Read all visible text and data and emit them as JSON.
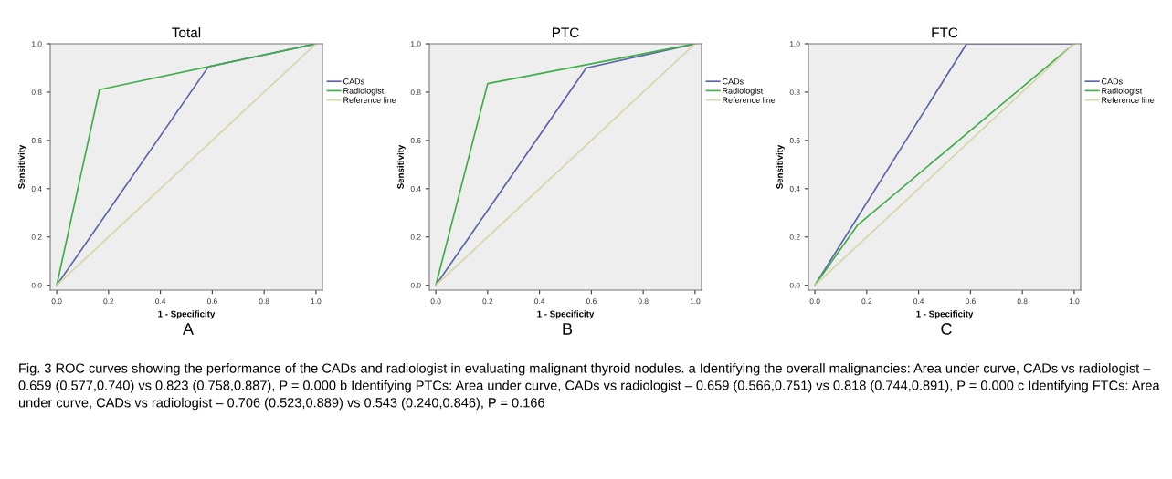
{
  "chart_data": [
    {
      "type": "line",
      "title": "Total",
      "xlabel": "1 - Specificity",
      "ylabel": "Sensitivity",
      "xlim": [
        -0.025,
        1.025
      ],
      "ylim": [
        -0.02,
        1.0
      ],
      "xticks": [
        {
          "value": 0,
          "label": "0.0"
        },
        {
          "value": 0.2,
          "label": "0.2"
        },
        {
          "value": 0.4,
          "label": "0.4"
        },
        {
          "value": 0.6,
          "label": "0.6"
        },
        {
          "value": 0.8,
          "label": "0.8"
        },
        {
          "value": 1,
          "label": "1.0"
        }
      ],
      "yticks": [
        {
          "value": 0,
          "label": "0.0"
        },
        {
          "value": 0.2,
          "label": "0.2"
        },
        {
          "value": 0.4,
          "label": "0.4"
        },
        {
          "value": 0.6,
          "label": "0.6"
        },
        {
          "value": 0.8,
          "label": "0.8"
        },
        {
          "value": 1,
          "label": "1.0"
        }
      ],
      "legend": "right",
      "grid": false,
      "marker": "none",
      "line_style": "solid",
      "series": [
        {
          "name": "CADs",
          "color": "#5a63a8",
          "x": [
            0,
            0.585,
            1
          ],
          "values": [
            0,
            0.905,
            1
          ]
        },
        {
          "name": "Radiologist",
          "color": "#3fae49",
          "x": [
            0,
            0.165,
            1
          ],
          "values": [
            0,
            0.81,
            1
          ]
        },
        {
          "name": "Reference line",
          "color": "#d8d5a8",
          "x": [
            0,
            1
          ],
          "values": [
            0,
            1
          ]
        }
      ],
      "annotations": [
        "A",
        "Fig. 3 ROC curves showing the performance of the CADs and radiologist in evaluating malignant thyroid nodules. a Identifying the overall malignancies: Area under curve, CADs vs radiologist – 0.659 (0.577,0.740) vs 0.823 (0.758,0.887), P = 0.000 b Identifying PTCs: Area under curve, CADs vs radiologist – 0.659 (0.566,0.751) vs 0.818 (0.744,0.891), P = 0.000 c Identifying FTCs: Area under curve, CADs vs radiologist – 0.706 (0.523,0.889) vs 0.543 (0.240,0.846), P = 0.166"
      ]
    },
    {
      "type": "line",
      "title": "PTC",
      "xlabel": "1 - Specificity",
      "ylabel": "Sensitivity",
      "xlim": [
        -0.025,
        1.025
      ],
      "ylim": [
        -0.02,
        1.0
      ],
      "xticks": [
        {
          "value": 0,
          "label": "0.0"
        },
        {
          "value": 0.2,
          "label": "0.2"
        },
        {
          "value": 0.4,
          "label": "0.4"
        },
        {
          "value": 0.6,
          "label": "0.6"
        },
        {
          "value": 0.8,
          "label": "0.8"
        },
        {
          "value": 1,
          "label": "1.0"
        }
      ],
      "yticks": [
        {
          "value": 0,
          "label": "0.0"
        },
        {
          "value": 0.2,
          "label": "0.2"
        },
        {
          "value": 0.4,
          "label": "0.4"
        },
        {
          "value": 0.6,
          "label": "0.6"
        },
        {
          "value": 0.8,
          "label": "0.8"
        },
        {
          "value": 1,
          "label": "1.0"
        }
      ],
      "legend": "right",
      "grid": false,
      "marker": "none",
      "line_style": "solid",
      "series": [
        {
          "name": "CADs",
          "color": "#5a63a8",
          "x": [
            0,
            0.58,
            1
          ],
          "values": [
            0,
            0.9,
            1
          ]
        },
        {
          "name": "Radiologist",
          "color": "#3fae49",
          "x": [
            0,
            0.2,
            1
          ],
          "values": [
            0,
            0.835,
            1
          ]
        },
        {
          "name": "Reference line",
          "color": "#d8d5a8",
          "x": [
            0,
            1
          ],
          "values": [
            0,
            1
          ]
        }
      ],
      "annotations": [
        "B"
      ]
    },
    {
      "type": "line",
      "title": "FTC",
      "xlabel": "1 - Specificity",
      "ylabel": "Sensitivity",
      "xlim": [
        -0.025,
        1.025
      ],
      "ylim": [
        -0.02,
        1.0
      ],
      "xticks": [
        {
          "value": 0,
          "label": "0.0"
        },
        {
          "value": 0.2,
          "label": "0.2"
        },
        {
          "value": 0.4,
          "label": "0.4"
        },
        {
          "value": 0.6,
          "label": "0.6"
        },
        {
          "value": 0.8,
          "label": "0.8"
        },
        {
          "value": 1,
          "label": "1.0"
        }
      ],
      "yticks": [
        {
          "value": 0,
          "label": "0.0"
        },
        {
          "value": 0.2,
          "label": "0.2"
        },
        {
          "value": 0.4,
          "label": "0.4"
        },
        {
          "value": 0.6,
          "label": "0.6"
        },
        {
          "value": 0.8,
          "label": "0.8"
        },
        {
          "value": 1,
          "label": "1.0"
        }
      ],
      "legend": "right",
      "grid": false,
      "marker": "none",
      "line_style": "solid",
      "series": [
        {
          "name": "CADs",
          "color": "#5a63a8",
          "x": [
            0,
            0.585,
            1
          ],
          "values": [
            0,
            1,
            1
          ]
        },
        {
          "name": "Radiologist",
          "color": "#3fae49",
          "x": [
            0,
            0.165,
            1
          ],
          "values": [
            0,
            0.25,
            1
          ]
        },
        {
          "name": "Reference line",
          "color": "#d8d5a8",
          "x": [
            0,
            1
          ],
          "values": [
            0,
            1
          ]
        }
      ],
      "annotations": [
        "C"
      ]
    }
  ]
}
